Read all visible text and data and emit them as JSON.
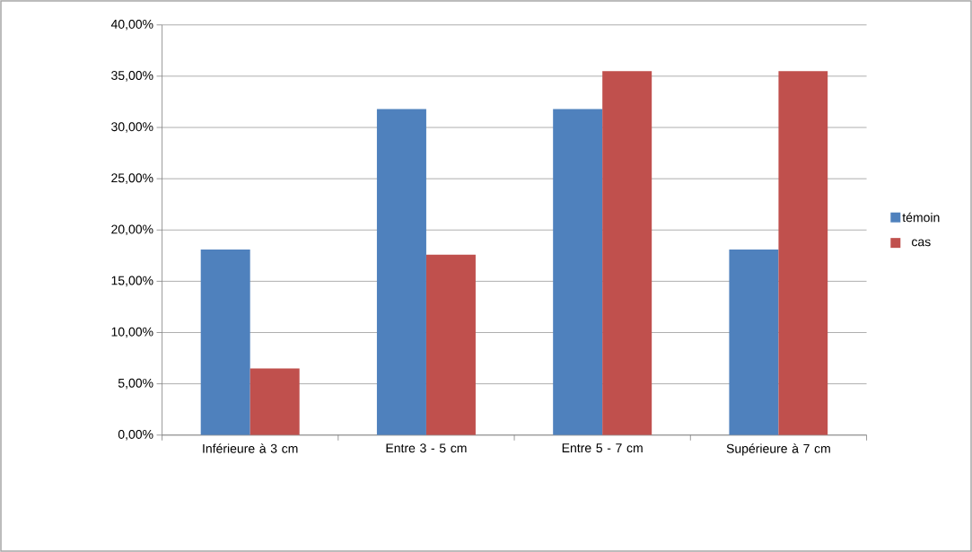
{
  "chart_data": {
    "type": "bar",
    "categories": [
      "Inférieure à 3 cm",
      "Entre 3 - 5 cm",
      "Entre 5 - 7 cm",
      "Supérieure à 7 cm"
    ],
    "series": [
      {
        "name": "témoin",
        "color": "#4f81bd",
        "values": [
          18.1,
          31.8,
          31.8,
          18.1
        ]
      },
      {
        "name": "cas",
        "color": "#c0504d",
        "values": [
          6.5,
          17.6,
          35.5,
          35.5
        ]
      }
    ],
    "ylim": [
      0,
      40
    ],
    "yticks": [
      {
        "value": 0,
        "label": "0,00%"
      },
      {
        "value": 5,
        "label": "5,00%"
      },
      {
        "value": 10,
        "label": "10,00%"
      },
      {
        "value": 15,
        "label": "15,00%"
      },
      {
        "value": 20,
        "label": "20,00%"
      },
      {
        "value": 25,
        "label": "25,00%"
      },
      {
        "value": 30,
        "label": "30,00%"
      },
      {
        "value": 35,
        "label": "35,00%"
      },
      {
        "value": 40,
        "label": "40,00%"
      }
    ],
    "grid": "y",
    "legend": "right"
  }
}
